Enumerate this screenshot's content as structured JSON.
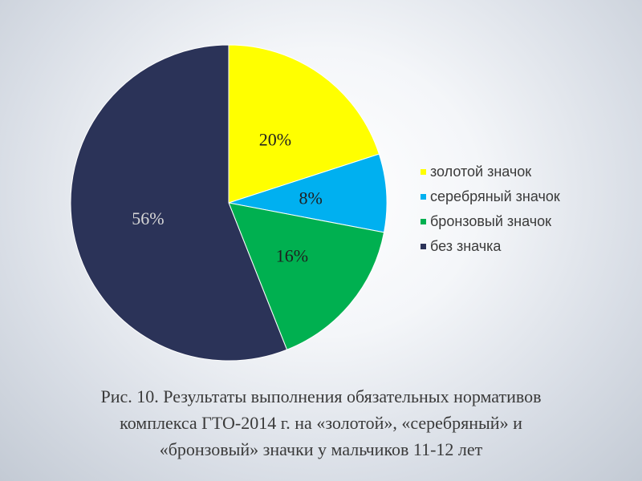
{
  "chart_data": {
    "type": "pie",
    "categories": [
      "золотой значок",
      "серебряный значок",
      "бронзовый значок",
      "без значка"
    ],
    "values": [
      20,
      8,
      16,
      56
    ],
    "data_labels": [
      "20%",
      "8%",
      "16%",
      "56%"
    ],
    "colors": [
      "#ffff00",
      "#00b0f0",
      "#00b050",
      "#2b3358"
    ],
    "legend_position": "right",
    "start_angle_deg": 0,
    "direction": "clockwise"
  },
  "caption": {
    "line1": "Рис. 10. Результаты выполнения обязательных нормативов",
    "line2": "комплекса ГТО-2014 г. на «золотой», «серебряный» и",
    "line3": "«бронзовый» значки у мальчиков 11-12 лет"
  }
}
